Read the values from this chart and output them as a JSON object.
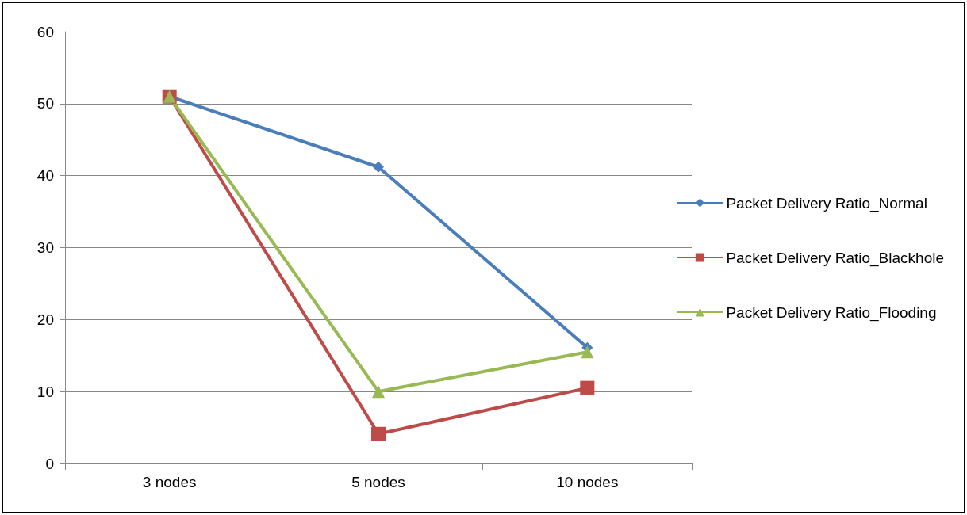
{
  "chart_data": {
    "type": "line",
    "categories": [
      "3 nodes",
      "5 nodes",
      "10 nodes"
    ],
    "series": [
      {
        "name": "Packet Delivery Ratio_Normal",
        "color": "#4a7ebb",
        "marker": "diamond",
        "values": [
          51,
          41.2,
          16.1
        ]
      },
      {
        "name": "Packet Delivery Ratio_Blackhole",
        "color": "#be4b48",
        "marker": "square",
        "values": [
          51,
          4.1,
          10.5
        ]
      },
      {
        "name": "Packet Delivery Ratio_Flooding",
        "color": "#98b954",
        "marker": "triangle",
        "values": [
          51,
          10,
          15.5
        ]
      }
    ],
    "ylim": [
      0,
      60
    ],
    "yticks": [
      0,
      10,
      20,
      30,
      40,
      50,
      60
    ],
    "grid": "y",
    "legend": "right",
    "line_style": "solid"
  }
}
